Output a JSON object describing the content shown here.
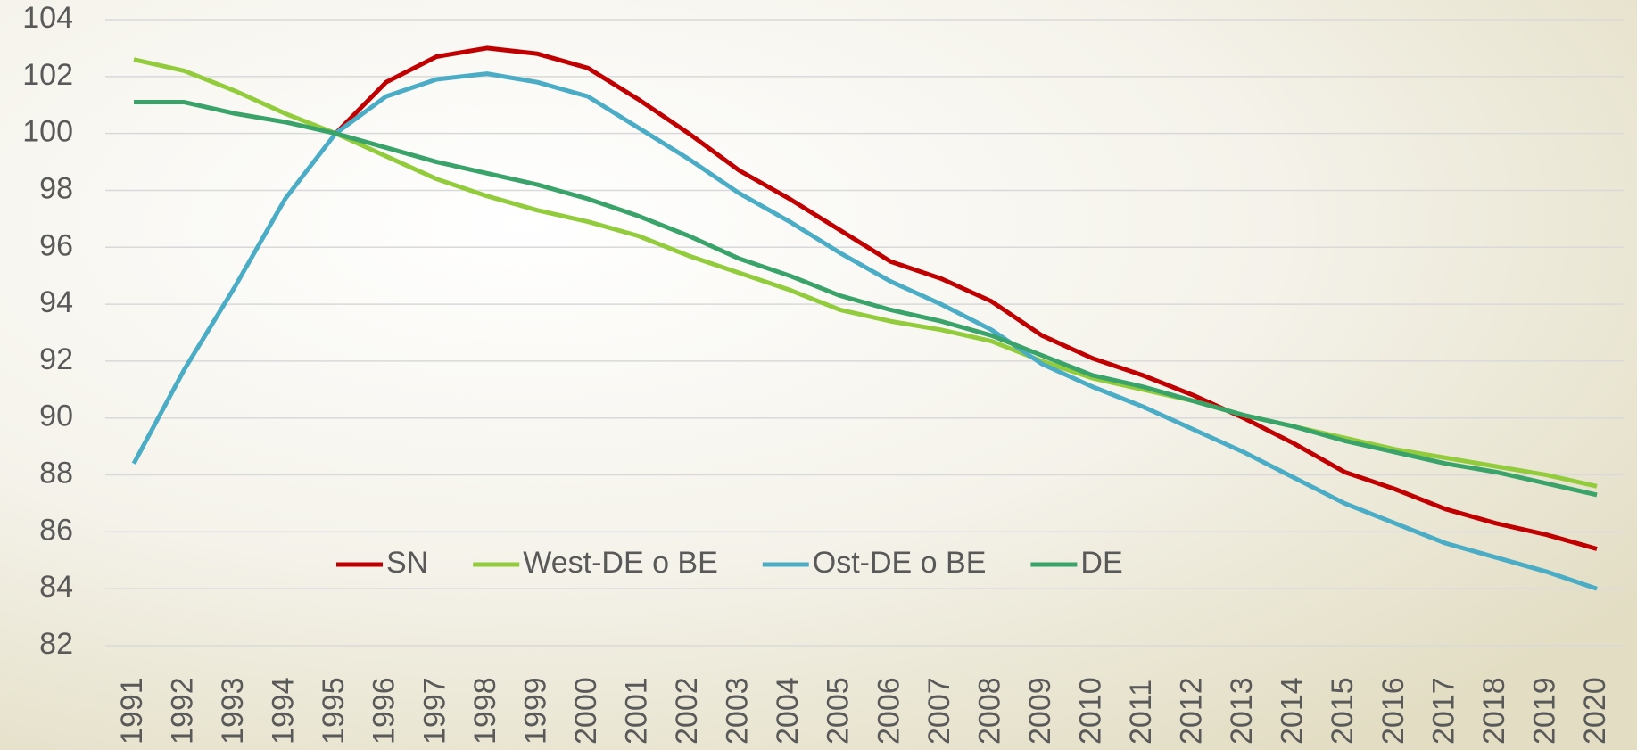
{
  "chart_data": {
    "type": "line",
    "categories": [
      "1991",
      "1992",
      "1993",
      "1994",
      "1995",
      "1996",
      "1997",
      "1998",
      "1999",
      "2000",
      "2001",
      "2002",
      "2003",
      "2004",
      "2005",
      "2006",
      "2007",
      "2008",
      "2009",
      "2010",
      "2011",
      "2012",
      "2013",
      "2014",
      "2015",
      "2016",
      "2017",
      "2018",
      "2019",
      "2020"
    ],
    "series": [
      {
        "name": "SN",
        "color": "#c00000",
        "values": [
          null,
          null,
          null,
          null,
          100.0,
          101.8,
          102.7,
          103.0,
          102.8,
          102.3,
          101.2,
          100.0,
          98.7,
          97.7,
          96.6,
          95.5,
          94.9,
          94.1,
          92.9,
          92.1,
          91.5,
          90.8,
          90.0,
          89.1,
          88.1,
          87.5,
          86.8,
          86.3,
          85.9,
          85.4
        ]
      },
      {
        "name": "West-DE o BE",
        "color": "#92cc3c",
        "values": [
          102.6,
          102.2,
          101.5,
          100.7,
          100.0,
          99.2,
          98.4,
          97.8,
          97.3,
          96.9,
          96.4,
          95.7,
          95.1,
          94.5,
          93.8,
          93.4,
          93.1,
          92.7,
          92.0,
          91.4,
          91.0,
          90.6,
          90.1,
          89.7,
          89.3,
          88.9,
          88.6,
          88.3,
          88.0,
          87.6
        ]
      },
      {
        "name": "Ost-DE o BE",
        "color": "#4bacc6",
        "values": [
          88.4,
          91.7,
          94.6,
          97.7,
          100.0,
          101.3,
          101.9,
          102.1,
          101.8,
          101.3,
          100.2,
          99.1,
          97.9,
          96.9,
          95.8,
          94.8,
          94.0,
          93.1,
          91.9,
          91.1,
          90.4,
          89.6,
          88.8,
          87.9,
          87.0,
          86.3,
          85.6,
          85.1,
          84.6,
          84.0
        ]
      },
      {
        "name": "DE",
        "color": "#3aa36a",
        "values": [
          101.1,
          101.1,
          100.7,
          100.4,
          100.0,
          99.5,
          99.0,
          98.6,
          98.2,
          97.7,
          97.1,
          96.4,
          95.6,
          95.0,
          94.3,
          93.8,
          93.4,
          92.9,
          92.2,
          91.5,
          91.1,
          90.6,
          90.1,
          89.7,
          89.2,
          88.8,
          88.4,
          88.1,
          87.7,
          87.3
        ]
      }
    ],
    "ylim": [
      82,
      104
    ],
    "yticks": [
      82,
      84,
      86,
      88,
      90,
      92,
      94,
      96,
      98,
      100,
      102,
      104
    ],
    "grid": true
  }
}
